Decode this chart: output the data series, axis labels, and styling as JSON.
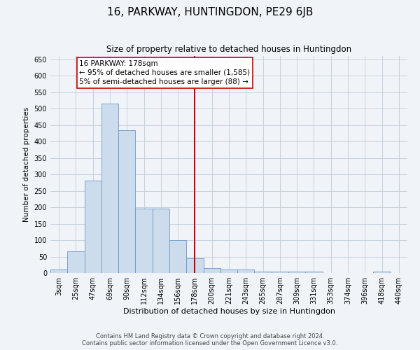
{
  "title": "16, PARKWAY, HUNTINGDON, PE29 6JB",
  "subtitle": "Size of property relative to detached houses in Huntingdon",
  "xlabel": "Distribution of detached houses by size in Huntingdon",
  "ylabel": "Number of detached properties",
  "footer_line1": "Contains HM Land Registry data © Crown copyright and database right 2024.",
  "footer_line2": "Contains public sector information licensed under the Open Government Licence v3.0.",
  "categories": [
    "3sqm",
    "25sqm",
    "47sqm",
    "69sqm",
    "90sqm",
    "112sqm",
    "134sqm",
    "156sqm",
    "178sqm",
    "200sqm",
    "221sqm",
    "243sqm",
    "265sqm",
    "287sqm",
    "309sqm",
    "331sqm",
    "353sqm",
    "374sqm",
    "396sqm",
    "418sqm",
    "440sqm"
  ],
  "values": [
    10,
    65,
    280,
    515,
    435,
    195,
    195,
    100,
    45,
    15,
    10,
    10,
    5,
    5,
    5,
    5,
    0,
    0,
    0,
    5,
    0
  ],
  "bar_color": "#cddcec",
  "bar_edge_color": "#6699cc",
  "vline_x_index": 8,
  "vline_color": "#cc0000",
  "annotation_title": "16 PARKWAY: 178sqm",
  "annotation_line1": "← 95% of detached houses are smaller (1,585)",
  "annotation_line2": "5% of semi-detached houses are larger (88) →",
  "annotation_box_color": "#cc0000",
  "ylim": [
    0,
    660
  ],
  "yticks": [
    0,
    50,
    100,
    150,
    200,
    250,
    300,
    350,
    400,
    450,
    500,
    550,
    600,
    650
  ],
  "bg_color": "#f0f4f8",
  "plot_bg_color": "#f0f4f8",
  "grid_color": "#c0ccd8",
  "title_fontsize": 11,
  "subtitle_fontsize": 8.5,
  "tick_fontsize": 7,
  "ylabel_fontsize": 7.5,
  "xlabel_fontsize": 8,
  "footer_fontsize": 6,
  "ann_fontsize": 7.5
}
